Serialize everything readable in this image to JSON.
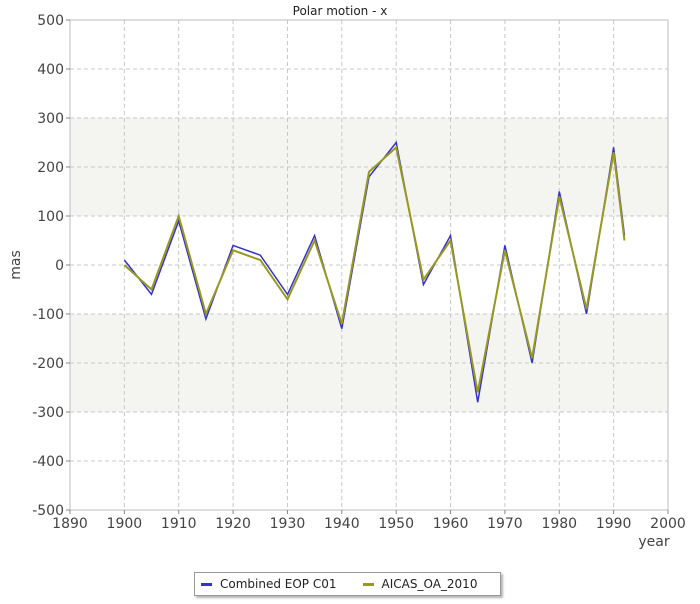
{
  "chart_data": {
    "type": "line",
    "title": "Polar motion - x",
    "xlabel": "year",
    "ylabel": "mas",
    "xlim": [
      1890,
      2000
    ],
    "ylim": [
      -500,
      500
    ],
    "xticks": [
      "1890",
      "1900",
      "1910",
      "1920",
      "1930",
      "1940",
      "1950",
      "1960",
      "1970",
      "1980",
      "1990",
      "2000"
    ],
    "yticks": [
      "500",
      "400",
      "300",
      "200",
      "100",
      "0",
      "-100",
      "-200",
      "-300",
      "-400",
      "-500"
    ],
    "grid": true,
    "legend_position": "bottom",
    "series": [
      {
        "name": "Combined EOP C01",
        "color": "#3333cc",
        "x": [
          1900,
          1905,
          1910,
          1915,
          1920,
          1925,
          1930,
          1935,
          1940,
          1945,
          1950,
          1955,
          1960,
          1965,
          1970,
          1975,
          1980,
          1985,
          1990,
          1992
        ],
        "y": [
          10,
          -60,
          90,
          -110,
          40,
          20,
          -60,
          60,
          -130,
          180,
          250,
          -40,
          60,
          -280,
          40,
          -200,
          150,
          -100,
          240,
          60
        ]
      },
      {
        "name": "AICAS_OA_2010",
        "color": "#999922",
        "x": [
          1900,
          1905,
          1910,
          1915,
          1920,
          1925,
          1930,
          1935,
          1940,
          1945,
          1950,
          1955,
          1960,
          1965,
          1970,
          1975,
          1980,
          1985,
          1990,
          1992
        ],
        "y": [
          0,
          -50,
          100,
          -100,
          30,
          10,
          -70,
          50,
          -120,
          190,
          240,
          -30,
          50,
          -260,
          30,
          -190,
          140,
          -90,
          230,
          50
        ]
      }
    ]
  }
}
